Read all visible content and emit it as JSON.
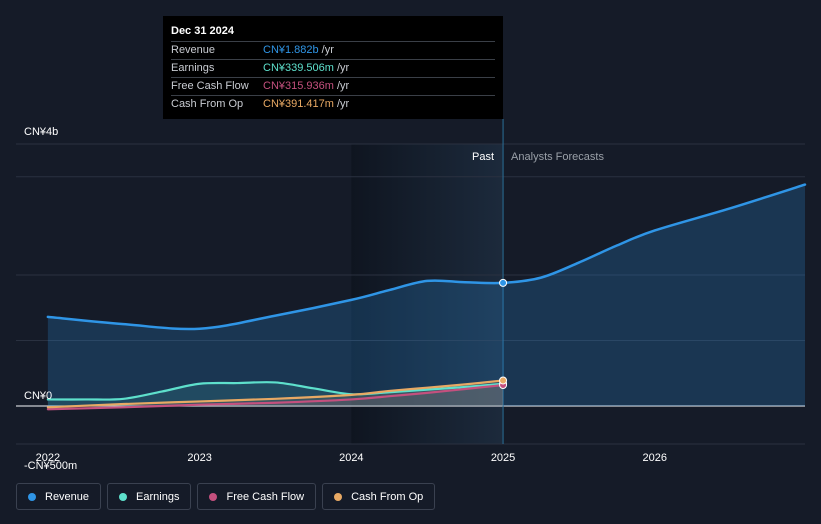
{
  "colors": {
    "revenue": "#2f95e6",
    "earnings": "#5ee0cc",
    "free_cash_flow": "#c4507e",
    "cash_from_op": "#e8a964"
  },
  "tooltip": {
    "date": "Dec 31 2024",
    "rows": [
      {
        "label": "Revenue",
        "value": "CN¥1.882b",
        "unit": "/yr"
      },
      {
        "label": "Earnings",
        "value": "CN¥339.506m",
        "unit": "/yr"
      },
      {
        "label": "Free Cash Flow",
        "value": "CN¥315.936m",
        "unit": "/yr"
      },
      {
        "label": "Cash From Op",
        "value": "CN¥391.417m",
        "unit": "/yr"
      }
    ]
  },
  "legend": [
    {
      "label": "Revenue",
      "color": "#2f95e6"
    },
    {
      "label": "Earnings",
      "color": "#5ee0cc"
    },
    {
      "label": "Free Cash Flow",
      "color": "#c4507e"
    },
    {
      "label": "Cash From Op",
      "color": "#e8a964"
    }
  ],
  "chart_data": {
    "type": "line",
    "title": "",
    "xlabel": "",
    "ylabel": "",
    "xlim": [
      2021.79,
      2026.99
    ],
    "ylim": [
      -0.5,
      4.0
    ],
    "y_tick_labels": [
      {
        "value": 4.0,
        "label": "CN¥4b"
      },
      {
        "value": 0.0,
        "label": "CN¥0"
      },
      {
        "value": -0.5,
        "label": "-CN¥500m"
      }
    ],
    "gridlines": [
      4.0,
      3.5,
      2.0,
      1.0,
      0.0
    ],
    "x_ticks": [
      {
        "value": 2022,
        "label": "2022"
      },
      {
        "value": 2023,
        "label": "2023"
      },
      {
        "value": 2024,
        "label": "2024"
      },
      {
        "value": 2025,
        "label": "2025"
      },
      {
        "value": 2026,
        "label": "2026"
      }
    ],
    "past_start": 2024.0,
    "divider_x": 2025.0,
    "past_label": "Past",
    "forecast_label": "Analysts Forecasts",
    "series": [
      {
        "name": "Revenue",
        "key": "revenue",
        "x": [
          2022.0,
          2022.5,
          2023.0,
          2023.5,
          2024.0,
          2024.25,
          2024.5,
          2024.75,
          2025.0,
          2025.25,
          2025.5,
          2025.75,
          2026.0,
          2026.5,
          2026.99
        ],
        "y": [
          1.36,
          1.25,
          1.18,
          1.38,
          1.62,
          1.77,
          1.91,
          1.89,
          1.88,
          1.96,
          2.19,
          2.45,
          2.68,
          3.02,
          3.38
        ]
      },
      {
        "name": "Earnings",
        "key": "earnings",
        "x": [
          2022.0,
          2022.25,
          2022.5,
          2022.75,
          2023.0,
          2023.25,
          2023.5,
          2023.75,
          2024.0,
          2024.25,
          2024.5,
          2024.75,
          2025.0
        ],
        "y": [
          0.1,
          0.1,
          0.11,
          0.22,
          0.34,
          0.35,
          0.36,
          0.27,
          0.18,
          0.21,
          0.25,
          0.29,
          0.34
        ]
      },
      {
        "name": "Free Cash Flow",
        "key": "free_cash_flow",
        "x": [
          2022.0,
          2022.5,
          2023.0,
          2023.5,
          2024.0,
          2024.25,
          2024.5,
          2024.75,
          2025.0
        ],
        "y": [
          -0.05,
          -0.02,
          0.02,
          0.05,
          0.1,
          0.15,
          0.2,
          0.26,
          0.32
        ]
      },
      {
        "name": "Cash From Op",
        "key": "cash_from_op",
        "x": [
          2022.0,
          2022.5,
          2023.0,
          2023.5,
          2024.0,
          2024.25,
          2024.5,
          2024.75,
          2025.0
        ],
        "y": [
          -0.02,
          0.03,
          0.07,
          0.11,
          0.17,
          0.23,
          0.28,
          0.33,
          0.39
        ]
      }
    ]
  }
}
